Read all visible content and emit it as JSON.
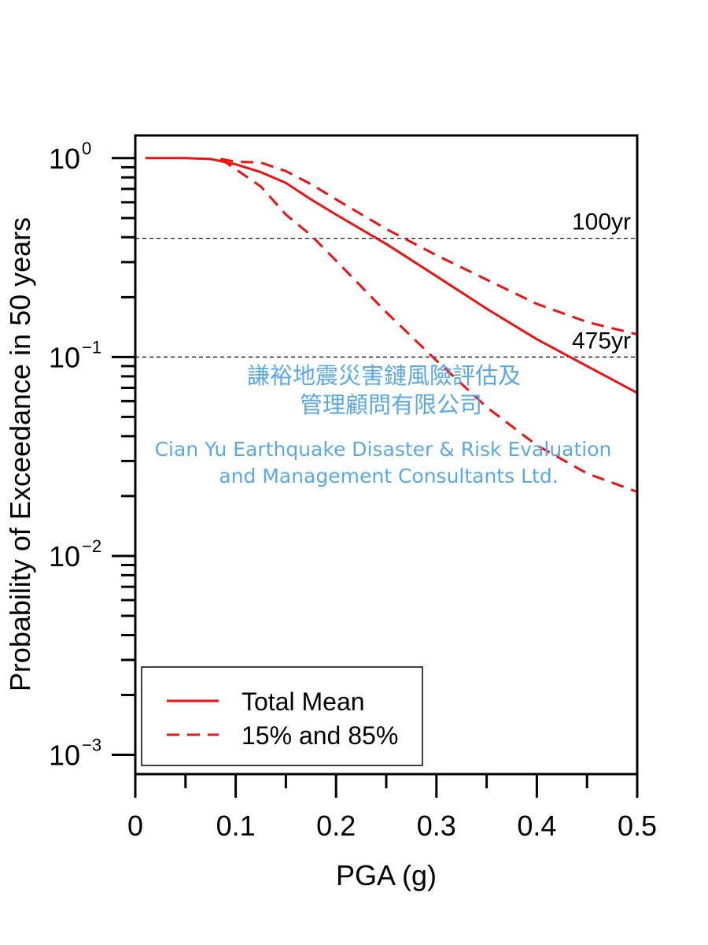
{
  "chart_data": {
    "type": "line",
    "xlabel": "PGA (g)",
    "ylabel": "Probability of Exceedance in 50 years",
    "xlim": [
      0,
      0.5
    ],
    "ylim": [
      0.0008,
      1.3
    ],
    "y_scale": "log",
    "x_ticks": [
      "0",
      "0.1",
      "0.2",
      "0.3",
      "0.4",
      "0.5"
    ],
    "y_ticks": [
      {
        "value": 1,
        "base": "10",
        "exp": "0"
      },
      {
        "value": 0.1,
        "base": "10",
        "exp": "−1"
      },
      {
        "value": 0.01,
        "base": "10",
        "exp": "−2"
      },
      {
        "value": 0.001,
        "base": "10",
        "exp": "−3"
      }
    ],
    "reference_lines": [
      {
        "label": "100yr",
        "y": 0.395
      },
      {
        "label": "475yr",
        "y": 0.1
      }
    ],
    "series": [
      {
        "name": "Total Mean",
        "style": "solid",
        "color": "#ee1111",
        "x": [
          0.01,
          0.05,
          0.075,
          0.1,
          0.125,
          0.15,
          0.175,
          0.2,
          0.25,
          0.3,
          0.35,
          0.4,
          0.45,
          0.5
        ],
        "y": [
          1.0,
          1.0,
          0.99,
          0.93,
          0.85,
          0.75,
          0.62,
          0.52,
          0.37,
          0.255,
          0.175,
          0.123,
          0.09,
          0.066
        ]
      },
      {
        "name": "85%",
        "style": "dashed",
        "color": "#ee1111",
        "x": [
          0.085,
          0.1,
          0.125,
          0.15,
          0.175,
          0.2,
          0.25,
          0.3,
          0.35,
          0.4,
          0.45,
          0.5
        ],
        "y": [
          0.99,
          0.96,
          0.95,
          0.86,
          0.74,
          0.62,
          0.44,
          0.325,
          0.245,
          0.185,
          0.15,
          0.13
        ]
      },
      {
        "name": "15%",
        "style": "dashed",
        "color": "#ee1111",
        "x": [
          0.085,
          0.1,
          0.125,
          0.15,
          0.175,
          0.2,
          0.25,
          0.3,
          0.35,
          0.4,
          0.45,
          0.5
        ],
        "y": [
          0.99,
          0.88,
          0.72,
          0.52,
          0.41,
          0.305,
          0.168,
          0.096,
          0.056,
          0.036,
          0.026,
          0.021
        ]
      }
    ],
    "legend": {
      "placement": "bottom-left",
      "entries": [
        {
          "label": "Total Mean",
          "style": "solid"
        },
        {
          "label": "15% and 85%",
          "style": "dashed"
        }
      ]
    },
    "grid": false
  },
  "watermark": {
    "line1": "謙裕地震災害鏈風險評估及",
    "line2": "管理顧問有限公司",
    "line3": "Cian Yu Earthquake Disaster & Risk Evaluation",
    "line4": "and Management Consultants Ltd.",
    "color": "#5aa8e6"
  }
}
